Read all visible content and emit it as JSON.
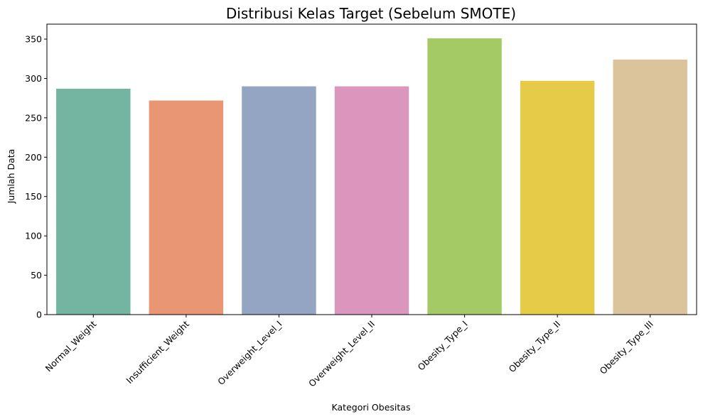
{
  "chart_data": {
    "type": "bar",
    "title": "Distribusi Kelas Target (Sebelum SMOTE)",
    "xlabel": "Kategori Obesitas",
    "ylabel": "Jumlah Data",
    "categories": [
      "Normal_Weight",
      "Insufficient_Weight",
      "Overweight_Level_I",
      "Overweight_Level_II",
      "Obesity_Type_I",
      "Obesity_Type_II",
      "Obesity_Type_III"
    ],
    "values": [
      287,
      272,
      290,
      290,
      351,
      297,
      324
    ],
    "colors": [
      "#73b5a0",
      "#e99674",
      "#94a4c3",
      "#db96be",
      "#a4ca66",
      "#e6cb49",
      "#dbc49c"
    ],
    "ylim": [
      0,
      369
    ],
    "yticks": [
      0,
      50,
      100,
      150,
      200,
      250,
      300,
      350
    ],
    "grid": false,
    "legend": "none"
  }
}
